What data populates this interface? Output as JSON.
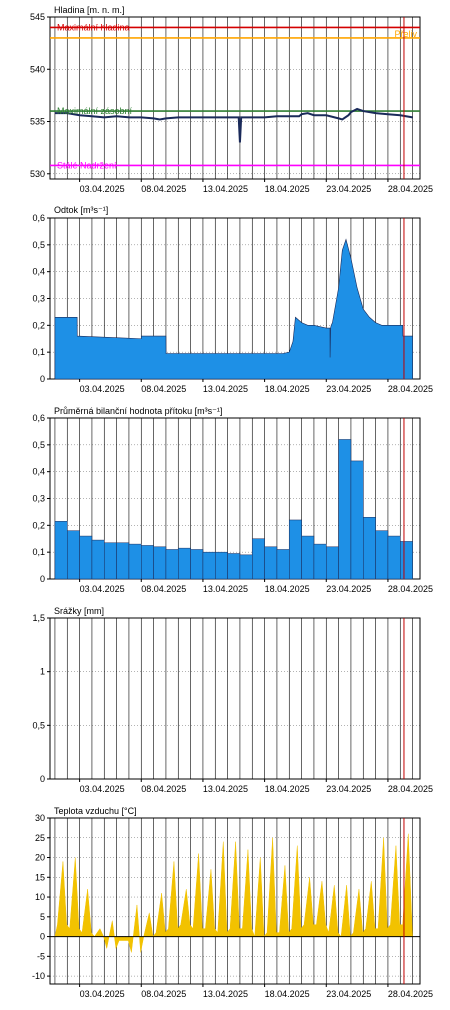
{
  "colors": {
    "grid": "#000000",
    "today": "#c00000",
    "level": "#1a2a5a",
    "fill": "#1e90e6",
    "temp": "#f2c200",
    "max_level": "#d40000",
    "overflow": "#ffa500",
    "max_wl": "#2e7d32",
    "permanent": "#ff00ff"
  },
  "x_ticks": [
    "03.04.2025",
    "08.04.2025",
    "13.04.2025",
    "18.04.2025",
    "23.04.2025",
    "28.04.2025"
  ],
  "chart_data": [
    {
      "type": "line",
      "title": "Hladina [m. n. m.]",
      "ylim": [
        529.5,
        545
      ],
      "yticks": [
        "545",
        "540",
        "535",
        "530"
      ],
      "ytick_values": [
        545,
        540,
        535,
        530
      ],
      "x_range_days": [
        1,
        30.3
      ],
      "reference_lines": [
        {
          "name": "Maximální hladina",
          "value": 544,
          "color": "#d40000"
        },
        {
          "name": "Přeliv",
          "value": 543,
          "color": "#ffa500"
        },
        {
          "name": "Maximální zásobní",
          "value": 536,
          "color": "#2e7d32"
        },
        {
          "name": "Stálé Nadržení",
          "value": 530.8,
          "color": "#ff00ff"
        }
      ],
      "series": [
        {
          "x": [
            1,
            2,
            3,
            4,
            5,
            6,
            7,
            8,
            9,
            9.5,
            10,
            11,
            12,
            13,
            14,
            15,
            15.9,
            16,
            16.1,
            16.2,
            17,
            18,
            19,
            20,
            20.8,
            21,
            21.5,
            22,
            23,
            24,
            24.3,
            24.8,
            25,
            25.5,
            26,
            27,
            28,
            29,
            30
          ],
          "y": [
            535.8,
            535.8,
            535.6,
            535.5,
            535.4,
            535.5,
            535.4,
            535.4,
            535.3,
            535.2,
            535.3,
            535.4,
            535.4,
            535.4,
            535.4,
            535.4,
            535.4,
            533,
            535.4,
            535.4,
            535.4,
            535.4,
            535.5,
            535.5,
            535.5,
            535.7,
            535.8,
            535.6,
            535.6,
            535.3,
            535.2,
            535.6,
            535.9,
            536.2,
            536.0,
            535.8,
            535.7,
            535.6,
            535.4
          ]
        }
      ]
    },
    {
      "type": "area",
      "title": "Odtok [m³s⁻¹]",
      "ylim": [
        0,
        0.6
      ],
      "yticks": [
        "0",
        "0,1",
        "0,2",
        "0,3",
        "0,4",
        "0,5",
        "0,6"
      ],
      "ytick_values": [
        0,
        0.1,
        0.2,
        0.3,
        0.4,
        0.5,
        0.6
      ],
      "x_range_days": [
        1,
        30.3
      ],
      "series": [
        {
          "x": [
            1,
            2.8,
            2.81,
            8,
            8.01,
            10,
            10.01,
            19.5,
            20,
            20.3,
            20.5,
            21,
            21.5,
            22,
            23,
            23.3,
            23.31,
            23.35,
            23.4,
            23.5,
            24,
            24.3,
            24.6,
            25,
            25.5,
            26,
            26.5,
            27,
            27.5,
            28,
            29,
            29.2,
            29.21,
            30
          ],
          "y": [
            0.23,
            0.23,
            0.16,
            0.15,
            0.16,
            0.16,
            0.095,
            0.095,
            0.1,
            0.14,
            0.23,
            0.21,
            0.2,
            0.2,
            0.19,
            0.19,
            0.08,
            0.19,
            0.2,
            0.21,
            0.34,
            0.48,
            0.52,
            0.45,
            0.34,
            0.26,
            0.23,
            0.21,
            0.2,
            0.2,
            0.2,
            0.2,
            0.16,
            0.16
          ]
        }
      ]
    },
    {
      "type": "bar",
      "title": "Průměrná bilanční hodnota přítoku   [m³s⁻¹]",
      "ylim": [
        0,
        0.6
      ],
      "yticks": [
        "0",
        "0,1",
        "0,2",
        "0,3",
        "0,4",
        "0,5",
        "0,6"
      ],
      "ytick_values": [
        0,
        0.1,
        0.2,
        0.3,
        0.4,
        0.5,
        0.6
      ],
      "x_range_days": [
        1,
        30.3
      ],
      "series": [
        {
          "values": [
            0.215,
            0.18,
            0.16,
            0.145,
            0.135,
            0.135,
            0.13,
            0.125,
            0.12,
            0.11,
            0.115,
            0.11,
            0.1,
            0.1,
            0.095,
            0.09,
            0.15,
            0.12,
            0.11,
            0.22,
            0.16,
            0.13,
            0.12,
            0.52,
            0.44,
            0.23,
            0.18,
            0.16,
            0.14
          ]
        }
      ]
    },
    {
      "type": "bar",
      "title": "Srážky [mm]",
      "ylim": [
        0,
        1.5
      ],
      "yticks": [
        "0",
        "0,5",
        "1",
        "1,5"
      ],
      "ytick_values": [
        0,
        0.5,
        1,
        1.5
      ],
      "x_range_days": [
        1,
        30.3
      ],
      "series": [
        {
          "values": [
            0,
            0,
            0,
            0,
            0,
            0,
            0,
            0,
            0,
            0,
            0,
            0,
            0,
            0,
            0,
            0,
            0,
            0,
            0,
            0,
            0,
            0,
            0,
            0,
            0,
            0,
            0,
            0,
            0
          ]
        }
      ]
    },
    {
      "type": "area",
      "title": "Teplota vzduchu [°C]",
      "ylim": [
        -12,
        30
      ],
      "yticks": [
        "30",
        "25",
        "20",
        "15",
        "10",
        "5",
        "0",
        "-5",
        "-10"
      ],
      "ytick_values": [
        30,
        25,
        20,
        15,
        10,
        5,
        0,
        -5,
        -10
      ],
      "x_range_days": [
        1,
        30.3
      ],
      "daily_min": [
        3,
        2,
        1,
        0,
        -3,
        -1,
        -4,
        0,
        1,
        2,
        3,
        2,
        2,
        1,
        2,
        2,
        0,
        1,
        1,
        2,
        3,
        3,
        1,
        0,
        1,
        2,
        2,
        3,
        3
      ],
      "daily_max": [
        19,
        20,
        12,
        2,
        4,
        -1,
        8,
        6,
        11,
        19,
        12,
        21,
        17,
        24,
        24,
        22,
        20,
        25,
        18,
        23,
        15,
        14,
        13,
        13,
        12,
        14,
        25,
        23,
        26
      ]
    }
  ]
}
